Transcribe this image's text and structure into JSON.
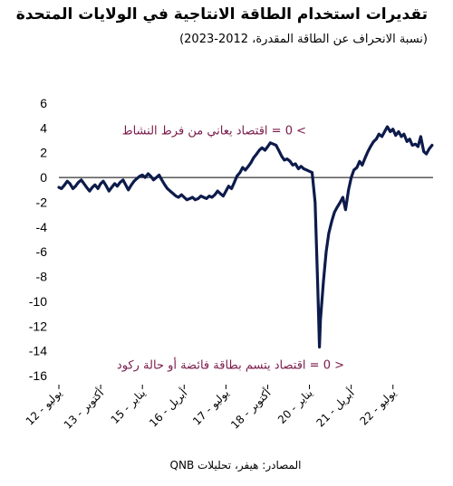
{
  "header": {
    "title": "تقديرات استخدام الطاقة الانتاجية في الولايات المتحدة",
    "subtitle": "(نسبة الانحراف عن الطاقة المقدرة، 2012-2023)"
  },
  "footer": {
    "source": "المصادر: هيفر، تحليلات QNB"
  },
  "chart_data": {
    "type": "line",
    "title": "تقديرات استخدام الطاقة الانتاجية في الولايات المتحدة",
    "subtitle": "(نسبة الانحراف عن الطاقة المقدرة، 2012-2023)",
    "ylim": [
      -16,
      6
    ],
    "yticks": [
      6,
      4,
      2,
      0,
      -2,
      -4,
      -6,
      -8,
      -10,
      -12,
      -14,
      -16
    ],
    "xlim": [
      2012.5,
      2023.7
    ],
    "xticks": [
      {
        "x": 2012.5,
        "label": "يوليو - 12"
      },
      {
        "x": 2013.75,
        "label": "أكتوبر - 13"
      },
      {
        "x": 2015.0,
        "label": "يناير - 15"
      },
      {
        "x": 2016.25,
        "label": "أبريل - 16"
      },
      {
        "x": 2017.5,
        "label": "يوليو - 17"
      },
      {
        "x": 2018.75,
        "label": "أكتوبر - 18"
      },
      {
        "x": 2020.0,
        "label": "يناير - 20"
      },
      {
        "x": 2021.25,
        "label": "أبريل - 21"
      },
      {
        "x": 2022.5,
        "label": "يوليو - 22"
      }
    ],
    "annotations": [
      {
        "text": "> 0 = اقتصاد يعاني من فرط النشاط",
        "position": "top"
      },
      {
        "text": "< 0 = اقتصاد يتسم بطاقة فائضة أو حالة ركود",
        "position": "bottom"
      }
    ],
    "series": [
      {
        "color": "#0d1b4b",
        "points": [
          [
            2012.5,
            -0.8
          ],
          [
            2012.58,
            -0.9
          ],
          [
            2012.67,
            -0.6
          ],
          [
            2012.75,
            -0.3
          ],
          [
            2012.83,
            -0.5
          ],
          [
            2012.92,
            -0.9
          ],
          [
            2013.0,
            -0.7
          ],
          [
            2013.08,
            -0.4
          ],
          [
            2013.17,
            -0.2
          ],
          [
            2013.25,
            -0.5
          ],
          [
            2013.33,
            -0.8
          ],
          [
            2013.42,
            -1.1
          ],
          [
            2013.5,
            -0.8
          ],
          [
            2013.58,
            -0.6
          ],
          [
            2013.67,
            -0.9
          ],
          [
            2013.75,
            -0.5
          ],
          [
            2013.83,
            -0.3
          ],
          [
            2013.92,
            -0.7
          ],
          [
            2014.0,
            -1.1
          ],
          [
            2014.08,
            -0.8
          ],
          [
            2014.17,
            -0.5
          ],
          [
            2014.25,
            -0.7
          ],
          [
            2014.33,
            -0.4
          ],
          [
            2014.42,
            -0.2
          ],
          [
            2014.5,
            -0.6
          ],
          [
            2014.58,
            -1.0
          ],
          [
            2014.67,
            -0.6
          ],
          [
            2014.75,
            -0.3
          ],
          [
            2014.83,
            -0.1
          ],
          [
            2014.92,
            0.1
          ],
          [
            2015.0,
            0.2
          ],
          [
            2015.08,
            0.0
          ],
          [
            2015.17,
            0.3
          ],
          [
            2015.25,
            0.1
          ],
          [
            2015.33,
            -0.2
          ],
          [
            2015.42,
            0.0
          ],
          [
            2015.5,
            0.2
          ],
          [
            2015.58,
            -0.2
          ],
          [
            2015.67,
            -0.6
          ],
          [
            2015.75,
            -0.9
          ],
          [
            2015.83,
            -1.1
          ],
          [
            2015.92,
            -1.3
          ],
          [
            2016.0,
            -1.5
          ],
          [
            2016.08,
            -1.6
          ],
          [
            2016.17,
            -1.4
          ],
          [
            2016.25,
            -1.6
          ],
          [
            2016.33,
            -1.8
          ],
          [
            2016.42,
            -1.7
          ],
          [
            2016.5,
            -1.6
          ],
          [
            2016.58,
            -1.8
          ],
          [
            2016.67,
            -1.7
          ],
          [
            2016.75,
            -1.5
          ],
          [
            2016.83,
            -1.6
          ],
          [
            2016.92,
            -1.7
          ],
          [
            2017.0,
            -1.5
          ],
          [
            2017.08,
            -1.6
          ],
          [
            2017.17,
            -1.4
          ],
          [
            2017.25,
            -1.1
          ],
          [
            2017.33,
            -1.3
          ],
          [
            2017.42,
            -1.5
          ],
          [
            2017.5,
            -1.1
          ],
          [
            2017.58,
            -0.7
          ],
          [
            2017.67,
            -0.9
          ],
          [
            2017.75,
            -0.4
          ],
          [
            2017.83,
            0.1
          ],
          [
            2017.92,
            0.4
          ],
          [
            2018.0,
            0.8
          ],
          [
            2018.08,
            0.6
          ],
          [
            2018.17,
            0.9
          ],
          [
            2018.25,
            1.2
          ],
          [
            2018.33,
            1.6
          ],
          [
            2018.42,
            1.9
          ],
          [
            2018.5,
            2.2
          ],
          [
            2018.58,
            2.4
          ],
          [
            2018.67,
            2.2
          ],
          [
            2018.75,
            2.5
          ],
          [
            2018.83,
            2.8
          ],
          [
            2018.92,
            2.7
          ],
          [
            2019.0,
            2.6
          ],
          [
            2019.08,
            2.2
          ],
          [
            2019.17,
            1.7
          ],
          [
            2019.25,
            1.4
          ],
          [
            2019.33,
            1.5
          ],
          [
            2019.42,
            1.3
          ],
          [
            2019.5,
            1.0
          ],
          [
            2019.58,
            1.1
          ],
          [
            2019.67,
            0.7
          ],
          [
            2019.75,
            0.9
          ],
          [
            2019.83,
            0.7
          ],
          [
            2019.92,
            0.6
          ],
          [
            2020.0,
            0.5
          ],
          [
            2020.08,
            0.4
          ],
          [
            2020.17,
            -2.0
          ],
          [
            2020.25,
            -9.0
          ],
          [
            2020.3,
            -13.7
          ],
          [
            2020.33,
            -11.5
          ],
          [
            2020.42,
            -8.3
          ],
          [
            2020.5,
            -6.0
          ],
          [
            2020.58,
            -4.5
          ],
          [
            2020.67,
            -3.5
          ],
          [
            2020.75,
            -2.8
          ],
          [
            2020.83,
            -2.4
          ],
          [
            2020.92,
            -2.0
          ],
          [
            2021.0,
            -1.6
          ],
          [
            2021.08,
            -2.6
          ],
          [
            2021.17,
            -1.0
          ],
          [
            2021.25,
            0.0
          ],
          [
            2021.33,
            0.6
          ],
          [
            2021.42,
            0.8
          ],
          [
            2021.5,
            1.3
          ],
          [
            2021.58,
            1.0
          ],
          [
            2021.67,
            1.6
          ],
          [
            2021.75,
            2.1
          ],
          [
            2021.83,
            2.5
          ],
          [
            2021.92,
            2.9
          ],
          [
            2022.0,
            3.1
          ],
          [
            2022.08,
            3.5
          ],
          [
            2022.17,
            3.3
          ],
          [
            2022.25,
            3.7
          ],
          [
            2022.33,
            4.1
          ],
          [
            2022.42,
            3.7
          ],
          [
            2022.5,
            3.9
          ],
          [
            2022.58,
            3.4
          ],
          [
            2022.67,
            3.7
          ],
          [
            2022.75,
            3.3
          ],
          [
            2022.83,
            3.5
          ],
          [
            2022.92,
            2.9
          ],
          [
            2023.0,
            3.1
          ],
          [
            2023.08,
            2.6
          ],
          [
            2023.17,
            2.7
          ],
          [
            2023.25,
            2.5
          ],
          [
            2023.33,
            3.3
          ],
          [
            2023.42,
            2.1
          ],
          [
            2023.5,
            1.9
          ],
          [
            2023.58,
            2.3
          ],
          [
            2023.67,
            2.6
          ]
        ]
      }
    ]
  }
}
